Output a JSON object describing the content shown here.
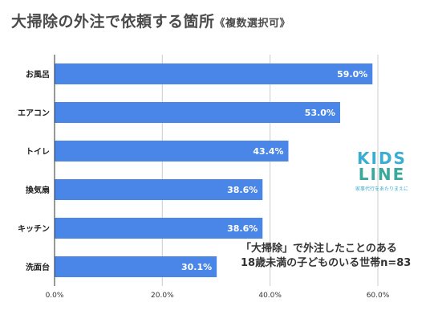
{
  "title": "大掃除の外注で依頼する箇所",
  "subtitle": "《複数選択可》",
  "note": {
    "line1": "「大掃除」で外注したことのある",
    "line2": "18歳未満の子どものいる世帯n=83"
  },
  "logo": {
    "line1": "KIDS",
    "line2": "LINE",
    "tagline": "家事代行をあたりまえに"
  },
  "colors": {
    "bar": "#4a86e8",
    "title": "#4a4a4a"
  },
  "chart_data": {
    "type": "bar",
    "orientation": "horizontal",
    "categories": [
      "お風呂",
      "エアコン",
      "トイレ",
      "換気扇",
      "キッチン",
      "洗面台"
    ],
    "values": [
      59.0,
      53.0,
      43.4,
      38.6,
      38.6,
      30.1
    ],
    "value_labels": [
      "59.0%",
      "53.0%",
      "43.4%",
      "38.6%",
      "38.6%",
      "30.1%"
    ],
    "xlim": [
      0,
      60
    ],
    "xticks": [
      0,
      20,
      40,
      60
    ],
    "xtick_labels": [
      "0.0%",
      "20.0%",
      "40.0%",
      "60.0%"
    ],
    "grid": true
  }
}
